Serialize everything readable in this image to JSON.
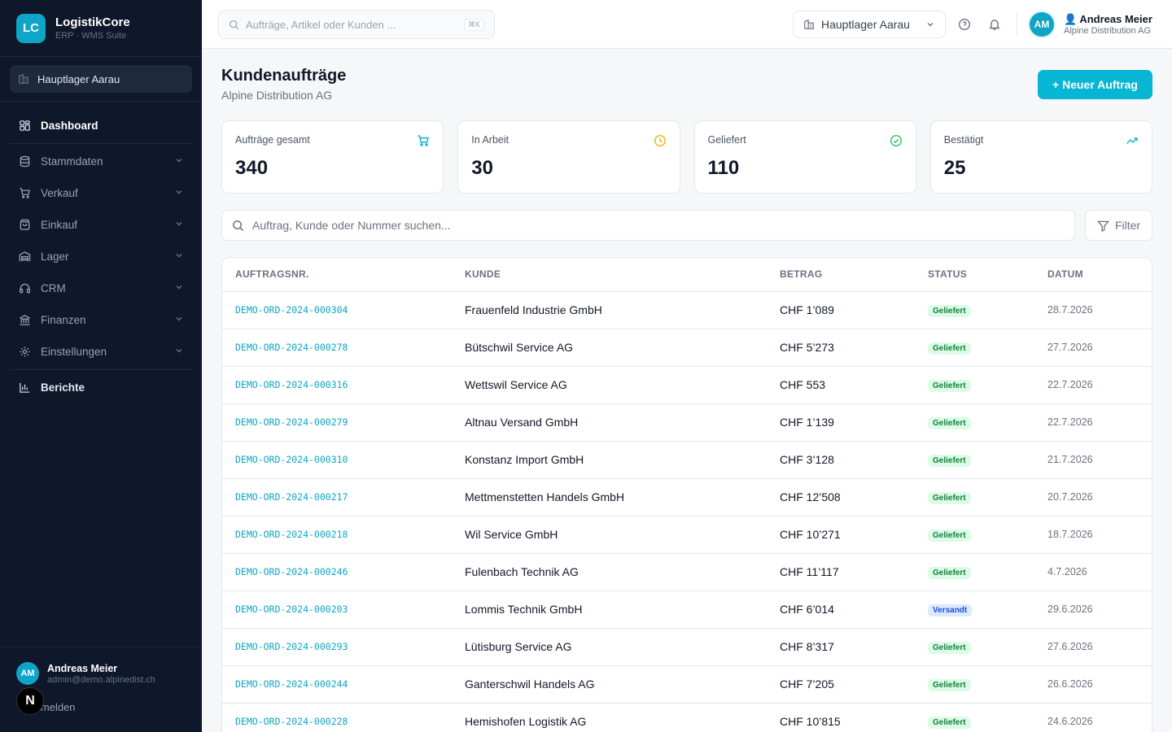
{
  "brand": {
    "logo": "LC",
    "name": "LogistikCore",
    "subtitle": "ERP · WMS Suite"
  },
  "sidebar": {
    "location": "Hauptlager Aarau",
    "items": [
      {
        "label": "Dashboard",
        "icon": "grid-icon"
      },
      {
        "label": "Stammdaten",
        "icon": "database-icon"
      },
      {
        "label": "Verkauf",
        "icon": "cart-icon"
      },
      {
        "label": "Einkauf",
        "icon": "bag-icon"
      },
      {
        "label": "Lager",
        "icon": "warehouse-icon"
      },
      {
        "label": "CRM",
        "icon": "headset-icon"
      },
      {
        "label": "Finanzen",
        "icon": "bank-icon"
      },
      {
        "label": "Einstellungen",
        "icon": "gear-icon"
      },
      {
        "label": "Berichte",
        "icon": "bar-chart-icon"
      }
    ],
    "user": {
      "initials": "AM",
      "name": "Andreas Meier",
      "email": "admin@demo.alpinedist.ch"
    },
    "logout": "Abmelden",
    "n_badge": "N"
  },
  "topbar": {
    "search_placeholder": "Aufträge, Artikel oder Kunden ...",
    "shortcut": "⌘K",
    "warehouse": "Hauptlager Aarau",
    "user": {
      "initials": "AM",
      "name": "👤 Andreas Meier",
      "org": "Alpine Distribution AG"
    }
  },
  "page": {
    "title": "Kundenaufträge",
    "subtitle": "Alpine Distribution AG",
    "new_button": "+ Neuer Auftrag"
  },
  "stats": [
    {
      "label": "Aufträge gesamt",
      "value": "340",
      "icon": "cart-icon",
      "color": "#06b6d4"
    },
    {
      "label": "In Arbeit",
      "value": "30",
      "icon": "clock-icon",
      "color": "#eab308"
    },
    {
      "label": "Geliefert",
      "value": "110",
      "icon": "check-circle-icon",
      "color": "#22c55e"
    },
    {
      "label": "Bestätigt",
      "value": "25",
      "icon": "trending-up-icon",
      "color": "#06b6d4"
    }
  ],
  "search": {
    "placeholder": "Auftrag, Kunde oder Nummer suchen..."
  },
  "filter_label": "Filter",
  "table": {
    "headers": [
      "AUFTRAGSNR.",
      "KUNDE",
      "BETRAG",
      "STATUS",
      "DATUM"
    ],
    "rows": [
      {
        "order": "DEMO-ORD-2024-000304",
        "customer": "Frauenfeld Industrie GmbH",
        "amount": "CHF 1’089",
        "status": "Geliefert",
        "date": "28.7.2026"
      },
      {
        "order": "DEMO-ORD-2024-000278",
        "customer": "Bütschwil Service AG",
        "amount": "CHF 5’273",
        "status": "Geliefert",
        "date": "27.7.2026"
      },
      {
        "order": "DEMO-ORD-2024-000316",
        "customer": "Wettswil Service AG",
        "amount": "CHF 553",
        "status": "Geliefert",
        "date": "22.7.2026"
      },
      {
        "order": "DEMO-ORD-2024-000279",
        "customer": "Altnau Versand GmbH",
        "amount": "CHF 1’139",
        "status": "Geliefert",
        "date": "22.7.2026"
      },
      {
        "order": "DEMO-ORD-2024-000310",
        "customer": "Konstanz Import GmbH",
        "amount": "CHF 3’128",
        "status": "Geliefert",
        "date": "21.7.2026"
      },
      {
        "order": "DEMO-ORD-2024-000217",
        "customer": "Mettmenstetten Handels GmbH",
        "amount": "CHF 12’508",
        "status": "Geliefert",
        "date": "20.7.2026"
      },
      {
        "order": "DEMO-ORD-2024-000218",
        "customer": "Wil Service GmbH",
        "amount": "CHF 10’271",
        "status": "Geliefert",
        "date": "18.7.2026"
      },
      {
        "order": "DEMO-ORD-2024-000246",
        "customer": "Fulenbach Technik AG",
        "amount": "CHF 11’117",
        "status": "Geliefert",
        "date": "4.7.2026"
      },
      {
        "order": "DEMO-ORD-2024-000203",
        "customer": "Lommis Technik GmbH",
        "amount": "CHF 6’014",
        "status": "Versandt",
        "date": "29.6.2026"
      },
      {
        "order": "DEMO-ORD-2024-000293",
        "customer": "Lütisburg Service AG",
        "amount": "CHF 8’317",
        "status": "Geliefert",
        "date": "27.6.2026"
      },
      {
        "order": "DEMO-ORD-2024-000244",
        "customer": "Ganterschwil Handels AG",
        "amount": "CHF 7’205",
        "status": "Geliefert",
        "date": "26.6.2026"
      },
      {
        "order": "DEMO-ORD-2024-000228",
        "customer": "Hemishofen Logistik AG",
        "amount": "CHF 10’815",
        "status": "Geliefert",
        "date": "24.6.2026"
      }
    ]
  }
}
